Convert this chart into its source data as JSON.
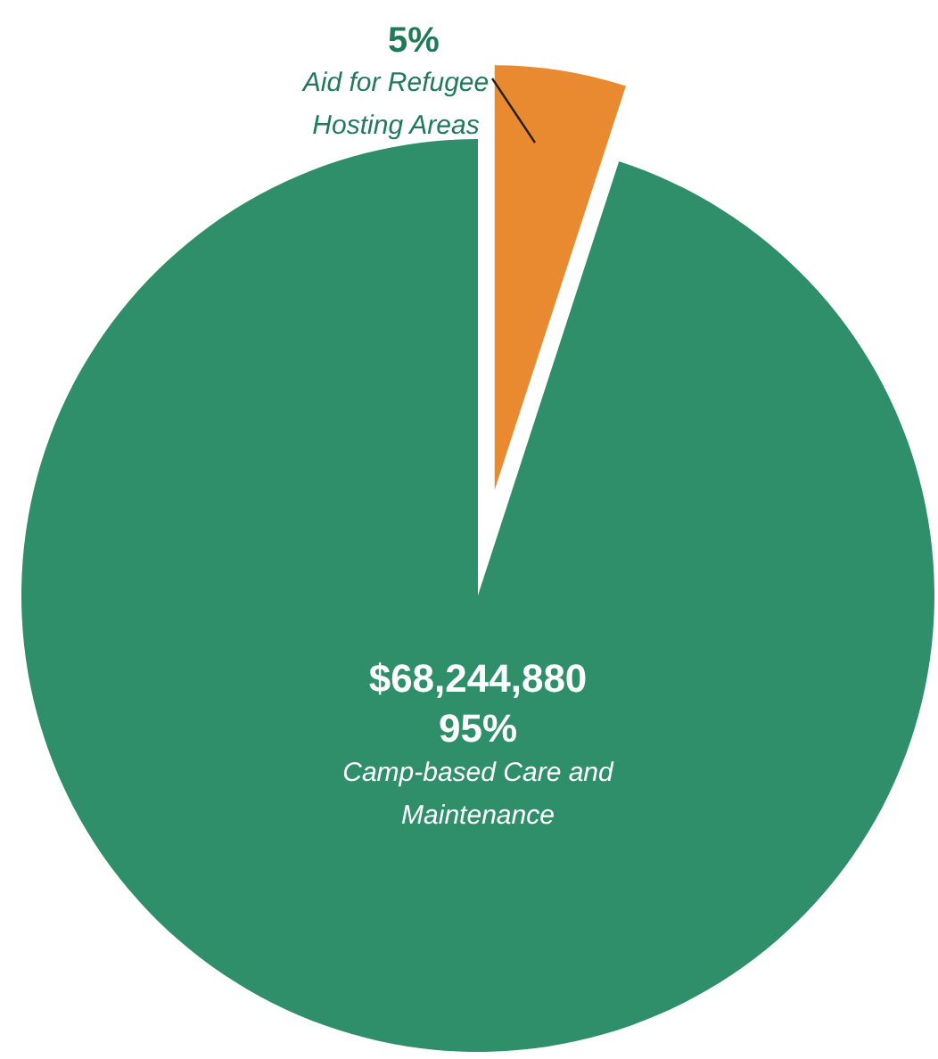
{
  "chart_data": {
    "type": "pie",
    "categories": [
      "Camp-based Care and Maintenance",
      "Aid for Refugee Hosting Areas"
    ],
    "values": [
      95,
      5
    ],
    "colors": [
      "#2f8f6b",
      "#ea8a30"
    ],
    "value_labels": [
      "95%",
      "5%"
    ],
    "annotations": [
      {
        "text": "$68,244,880",
        "x": "Camp-based Care and Maintenance"
      }
    ]
  }
}
